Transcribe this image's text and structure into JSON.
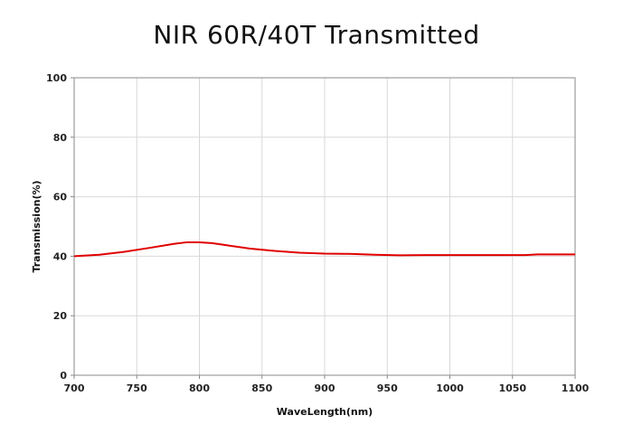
{
  "chart_data": {
    "type": "line",
    "title": "NIR 60R/40T Transmitted",
    "xlabel": "WaveLength(nm)",
    "ylabel": "Transmission(%)",
    "xlim": [
      700,
      1100
    ],
    "ylim": [
      0,
      100
    ],
    "xticks": [
      "700",
      "750",
      "800",
      "850",
      "900",
      "950",
      "1000",
      "1050",
      "1100"
    ],
    "yticks": [
      "0",
      "20",
      "40",
      "60",
      "80",
      "100"
    ],
    "grid": true,
    "line_color": "#e00000",
    "series": [
      {
        "x": [
          700,
          720,
          740,
          760,
          780,
          790,
          800,
          810,
          820,
          840,
          860,
          880,
          900,
          920,
          940,
          960,
          980,
          1000,
          1020,
          1040,
          1060,
          1070,
          1080,
          1100
        ],
        "y": [
          40.0,
          40.5,
          41.5,
          42.8,
          44.2,
          44.7,
          44.7,
          44.4,
          43.8,
          42.6,
          41.8,
          41.2,
          40.9,
          40.8,
          40.5,
          40.3,
          40.4,
          40.4,
          40.4,
          40.4,
          40.4,
          40.6,
          40.6,
          40.6
        ]
      }
    ]
  }
}
